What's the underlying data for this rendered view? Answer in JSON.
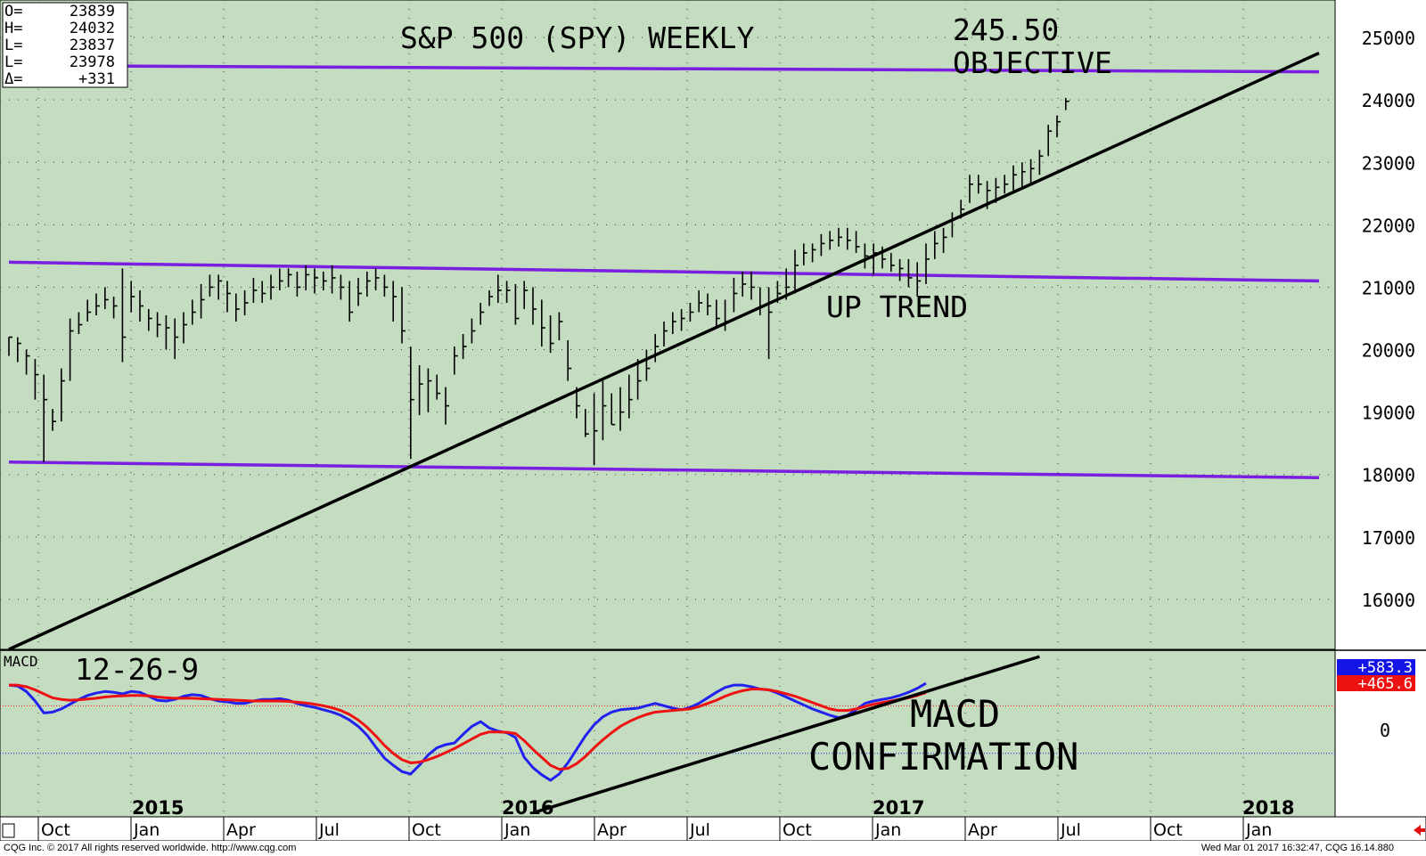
{
  "title": "S&P 500 (SPY) WEEKLY",
  "ohlc_box": [
    {
      "label": "O=",
      "value": "23839"
    },
    {
      "label": "H=",
      "value": "24032"
    },
    {
      "label": "L=",
      "value": "23837"
    },
    {
      "label": "L=",
      "value": "23978"
    },
    {
      "label": "Δ=",
      "value": "+331"
    }
  ],
  "annotations": {
    "objective_value": "245.50",
    "objective_label": "OBJECTIVE",
    "up_trend": "UP TREND",
    "macd_confirm_1": "MACD",
    "macd_confirm_2": "CONFIRMATION",
    "macd_params": "12-26-9",
    "macd_label": "MACD"
  },
  "macd_readouts": {
    "blue": "+583.3",
    "red": "+465.6"
  },
  "footer": {
    "left": "CQG Inc. © 2017 All rights reserved worldwide. http://www.cqg.com",
    "right": "Wed Mar 01 2017 16:32:47, CQG 16.14.880"
  },
  "colors": {
    "background": "#c4dcc0",
    "channel": "#7a1fe0",
    "trend": "#000000",
    "macd_line": "#2222ee",
    "signal_line": "#ee1111",
    "bars": "#000000"
  },
  "chart_data": [
    {
      "type": "ohlc",
      "title": "S&P 500 (SPY) WEEKLY",
      "ylim": [
        15200,
        25600
      ],
      "y_ticks": [
        16000,
        17000,
        18000,
        19000,
        20000,
        21000,
        22000,
        23000,
        24000,
        25000
      ],
      "x_month_labels": [
        "Oct",
        "Jan",
        "Apr",
        "Jul",
        "Oct",
        "Jan",
        "Apr",
        "Jul",
        "Oct",
        "Jan",
        "Apr",
        "Jul",
        "Oct",
        "Jan"
      ],
      "x_year_labels": [
        "2015",
        "2016",
        "2017",
        "2018"
      ],
      "grid": true,
      "series": {
        "close": [
          20200,
          20100,
          19900,
          19600,
          19200,
          18850,
          19500,
          20300,
          20400,
          20600,
          20700,
          20800,
          20700,
          20200,
          20850,
          20700,
          20500,
          20400,
          20350,
          20200,
          20400,
          20600,
          20800,
          21000,
          21100,
          20900,
          20650,
          20750,
          20950,
          20900,
          21000,
          21100,
          21200,
          21000,
          21200,
          21150,
          21100,
          21150,
          21000,
          20600,
          20900,
          21100,
          21150,
          21000,
          20850,
          20300,
          19200,
          19450,
          19500,
          19300,
          19100,
          19900,
          20050,
          20300,
          20600,
          20850,
          20950,
          20950,
          20500,
          20950,
          20650,
          20350,
          20100,
          20450,
          19700,
          19100,
          18650,
          18700,
          19100,
          18800,
          19000,
          19200,
          19500,
          19700,
          20050,
          20300,
          20450,
          20500,
          20600,
          20750,
          20700,
          20500,
          20450,
          20900,
          21050,
          21000,
          20700,
          20600,
          20900,
          21000,
          21350,
          21550,
          21600,
          21700,
          21750,
          21800,
          21750,
          21650,
          21500,
          21550,
          21450,
          21350,
          21300,
          21150,
          21100,
          21450,
          21700,
          21800,
          22100,
          22250,
          22650,
          22650,
          22550,
          22600,
          22650,
          22800,
          22850,
          22900,
          23100,
          23500,
          23650,
          23978
        ],
        "high": [
          20200,
          20200,
          20000,
          19850,
          19600,
          19050,
          19700,
          20500,
          20600,
          20800,
          20900,
          21000,
          20850,
          21300,
          21100,
          20950,
          20650,
          20600,
          20550,
          20500,
          20600,
          20800,
          21050,
          21200,
          21200,
          21100,
          20900,
          20950,
          21150,
          21100,
          21200,
          21300,
          21300,
          21250,
          21350,
          21300,
          21250,
          21350,
          21200,
          21100,
          21150,
          21250,
          21300,
          21200,
          21100,
          21000,
          20050,
          19750,
          19700,
          19600,
          19400,
          20050,
          20250,
          20500,
          20750,
          20950,
          21200,
          21100,
          21050,
          21100,
          21000,
          20800,
          20550,
          20600,
          20150,
          19400,
          19050,
          19300,
          19500,
          19300,
          19400,
          19600,
          19850,
          20000,
          20250,
          20450,
          20600,
          20650,
          20750,
          20950,
          20900,
          20800,
          20800,
          21150,
          21250,
          21250,
          21000,
          21000,
          21100,
          21300,
          21600,
          21700,
          21700,
          21850,
          21900,
          21950,
          21950,
          21900,
          21700,
          21700,
          21650,
          21550,
          21450,
          21450,
          21400,
          21700,
          21900,
          21950,
          22200,
          22400,
          22800,
          22800,
          22700,
          22750,
          22800,
          22950,
          23000,
          23050,
          23200,
          23600,
          23750,
          24032
        ],
        "low": [
          19900,
          19800,
          19600,
          19200,
          18200,
          18700,
          18850,
          19500,
          20250,
          20450,
          20550,
          20650,
          20500,
          19800,
          20600,
          20450,
          20300,
          20200,
          20000,
          19850,
          20100,
          20400,
          20500,
          20850,
          20800,
          20600,
          20450,
          20550,
          20750,
          20750,
          20800,
          20950,
          21000,
          20850,
          20950,
          20900,
          20950,
          20900,
          20800,
          20450,
          20700,
          20850,
          20950,
          20850,
          20450,
          20100,
          18250,
          18950,
          19000,
          19200,
          18800,
          19600,
          19850,
          20100,
          20400,
          20700,
          20750,
          20750,
          20400,
          20650,
          20400,
          20050,
          19950,
          20150,
          19500,
          18900,
          18600,
          18150,
          18550,
          18800,
          18700,
          18900,
          19200,
          19500,
          19800,
          20050,
          20250,
          20300,
          20450,
          20600,
          20550,
          20350,
          20300,
          20600,
          20850,
          20800,
          20550,
          19850,
          20750,
          20800,
          20900,
          21350,
          21400,
          21500,
          21600,
          21650,
          21600,
          21550,
          21300,
          21200,
          21300,
          21250,
          21100,
          21000,
          20850,
          21050,
          21450,
          21550,
          21800,
          22100,
          22350,
          22500,
          22250,
          22350,
          22500,
          22550,
          22600,
          22650,
          22800,
          23100,
          23400,
          23837
        ]
      },
      "lines": [
        {
          "name": "upper channel",
          "points": [
            [
              0,
              24550
            ],
            [
              150,
              24450
            ]
          ]
        },
        {
          "name": "middle channel",
          "points": [
            [
              0,
              21400
            ],
            [
              150,
              21100
            ]
          ]
        },
        {
          "name": "lower channel",
          "points": [
            [
              0,
              18200
            ],
            [
              150,
              17950
            ]
          ]
        },
        {
          "name": "up trend",
          "points": [
            [
              0,
              15200
            ],
            [
              150,
              24750
            ]
          ]
        }
      ]
    },
    {
      "type": "line",
      "title": "MACD",
      "params": "12-26-9",
      "ylim": [
        -1100,
        1000
      ],
      "y_ticks": [
        0
      ],
      "reference_lines": [
        {
          "value": 300,
          "color": "#ee1111"
        },
        {
          "value": -300,
          "color": "#2222ee"
        }
      ],
      "series": [
        {
          "name": "MACD",
          "values": [
            560,
            550,
            480,
            360,
            210,
            220,
            260,
            320,
            380,
            430,
            460,
            480,
            470,
            450,
            480,
            470,
            420,
            370,
            360,
            380,
            420,
            440,
            430,
            390,
            360,
            350,
            330,
            330,
            360,
            380,
            380,
            390,
            370,
            330,
            300,
            280,
            250,
            220,
            180,
            120,
            40,
            -70,
            -220,
            -360,
            -450,
            -530,
            -560,
            -450,
            -320,
            -230,
            -190,
            -170,
            -60,
            40,
            100,
            20,
            -20,
            -40,
            -100,
            -350,
            -480,
            -570,
            -640,
            -560,
            -420,
            -250,
            -80,
            60,
            160,
            220,
            250,
            260,
            270,
            300,
            330,
            300,
            270,
            250,
            280,
            330,
            400,
            470,
            530,
            560,
            560,
            540,
            510,
            500,
            460,
            410,
            360,
            310,
            260,
            220,
            180,
            150,
            180,
            250,
            330,
            360,
            380,
            400,
            430,
            470,
            520,
            583.3
          ]
        },
        {
          "name": "Signal",
          "values": [
            560,
            560,
            540,
            500,
            450,
            400,
            380,
            370,
            375,
            385,
            395,
            410,
            420,
            425,
            430,
            430,
            425,
            410,
            400,
            395,
            395,
            395,
            390,
            385,
            380,
            375,
            370,
            365,
            360,
            360,
            360,
            360,
            355,
            345,
            335,
            320,
            300,
            275,
            240,
            190,
            120,
            30,
            -80,
            -200,
            -300,
            -380,
            -420,
            -410,
            -380,
            -340,
            -290,
            -240,
            -180,
            -120,
            -60,
            -30,
            -30,
            -35,
            -50,
            -140,
            -250,
            -350,
            -450,
            -500,
            -490,
            -430,
            -340,
            -230,
            -130,
            -40,
            40,
            100,
            150,
            190,
            220,
            230,
            240,
            250,
            260,
            290,
            330,
            370,
            420,
            460,
            490,
            510,
            510,
            500,
            480,
            450,
            420,
            380,
            340,
            300,
            260,
            240,
            240,
            260,
            290,
            320,
            340,
            360,
            380,
            400,
            430,
            465.6
          ]
        }
      ],
      "lines": [
        {
          "name": "macd trend",
          "points": [
            [
              60,
              -1050
            ],
            [
              118,
              920
            ]
          ]
        }
      ]
    }
  ]
}
